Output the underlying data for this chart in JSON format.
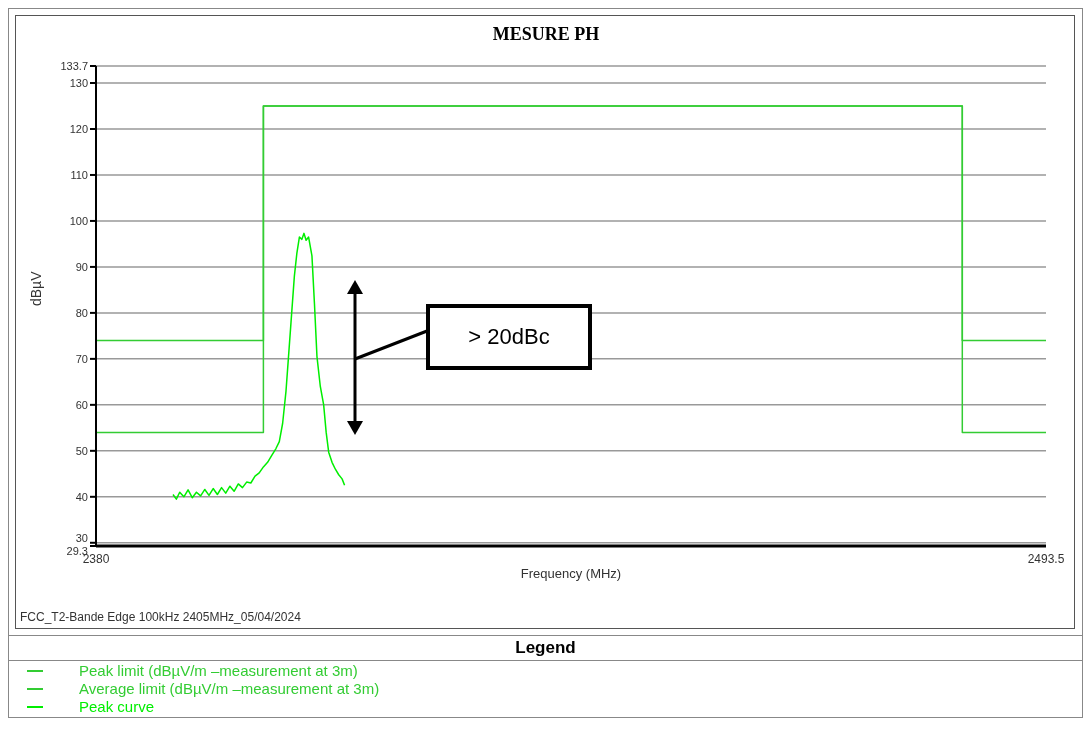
{
  "chart_data": {
    "type": "line",
    "title": "MESURE PH",
    "xlabel": "Frequency (MHz)",
    "ylabel": "dBµV",
    "legend_title": "Legend",
    "annotations": [
      "> 20dBc",
      "FCC_T2-Bande Edge 100kHz  2405MHz_05/04/2024"
    ],
    "xlim": [
      2380,
      2493.5
    ],
    "xticks": [
      2380,
      2493.5
    ],
    "ylim": [
      29.3,
      133.7
    ],
    "yticks": [
      29.3,
      30,
      40,
      50,
      60,
      70,
      80,
      90,
      100,
      110,
      120,
      130,
      133.7
    ],
    "grid": "y",
    "legend": "bottom",
    "marker": "none",
    "line_style": "solid",
    "series": [
      {
        "name": "Peak limit (dBµV/m –measurement at 3m)",
        "color": "#33cc33",
        "x": [
          2380,
          2400,
          2400,
          2483.5,
          2483.5,
          2493.5
        ],
        "values": [
          74,
          74,
          125,
          125,
          74,
          74
        ]
      },
      {
        "name": "Average limit (dBµV/m –measurement at 3m)",
        "color": "#33cc33",
        "x": [
          2380,
          2400,
          2400,
          2483.5,
          2483.5,
          2493.5
        ],
        "values": [
          54,
          54,
          125,
          125,
          54,
          54
        ]
      },
      {
        "name": "Peak curve",
        "color": "#00ee00",
        "x": [
          2389.2,
          2389.6,
          2390,
          2390.5,
          2391,
          2391.5,
          2392,
          2392.5,
          2393,
          2393.5,
          2394,
          2394.5,
          2395,
          2395.5,
          2396,
          2396.5,
          2397,
          2397.5,
          2398,
          2398.5,
          2399,
          2399.5,
          2400,
          2400.5,
          2401,
          2401.5,
          2401.9,
          2402.3,
          2402.7,
          2403,
          2403.3,
          2403.7,
          2404,
          2404.3,
          2404.6,
          2404.85,
          2405.1,
          2405.4,
          2405.8,
          2406.1,
          2406.4,
          2406.8,
          2407.2,
          2407.5,
          2407.8,
          2408.2,
          2408.6,
          2409,
          2409.4,
          2409.7
        ],
        "values": [
          40.5,
          39.5,
          41,
          40,
          41.5,
          39.8,
          41,
          40.2,
          41.6,
          40.3,
          41.8,
          40.5,
          42,
          40.8,
          42.3,
          41.2,
          42.8,
          42,
          43.2,
          43,
          44.5,
          45.2,
          46.5,
          47.5,
          49,
          50.5,
          52,
          56,
          63,
          70.5,
          78,
          88,
          93,
          96.5,
          96,
          97.3,
          95.8,
          96.5,
          92.4,
          82,
          70.5,
          64,
          60,
          54,
          49.7,
          47.5,
          46,
          44.8,
          43.9,
          42.5
        ]
      }
    ]
  }
}
